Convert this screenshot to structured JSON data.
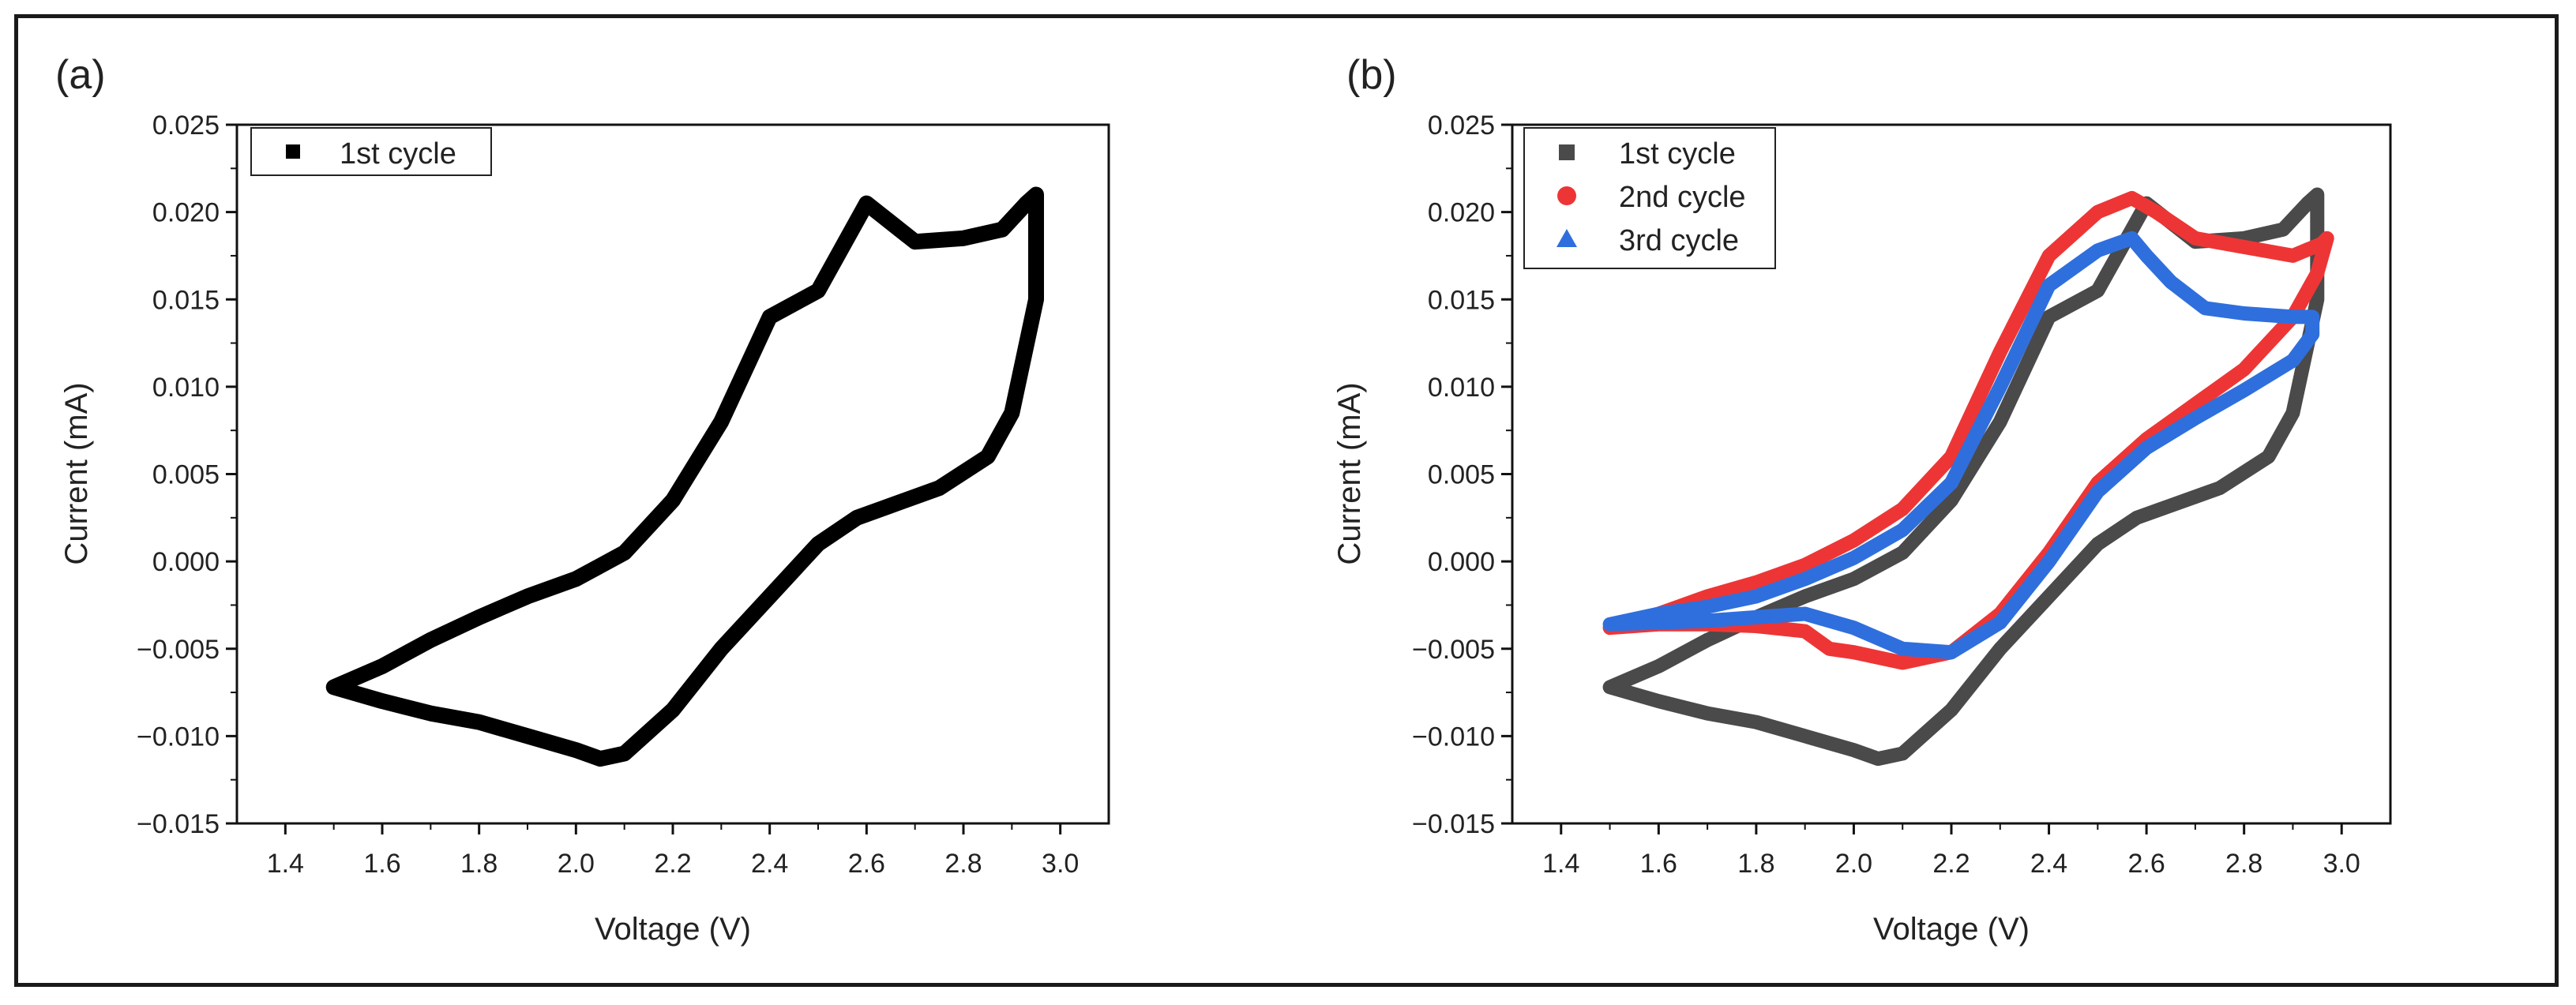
{
  "figure": {
    "panels": [
      "(a)",
      "(b)"
    ]
  },
  "colors": {
    "cycle1_a": "#000000",
    "cycle1_b": "#4a4a4a",
    "cycle2": "#ee3535",
    "cycle3": "#2f6fdd"
  },
  "chart_data": [
    {
      "type": "line",
      "panel_label": "(a)",
      "xlabel": "Voltage (V)",
      "ylabel": "Current (mA)",
      "xlim": [
        1.3,
        3.1
      ],
      "ylim": [
        -0.015,
        0.025
      ],
      "xticks": [
        "1.4",
        "1.6",
        "1.8",
        "2.0",
        "2.2",
        "2.4",
        "2.6",
        "2.8",
        "3.0"
      ],
      "yticks": [
        "0.025",
        "0.020",
        "0.015",
        "0.010",
        "0.005",
        "0.000",
        "−0.005",
        "−0.010",
        "−0.015"
      ],
      "legend_position": "top-left",
      "series": [
        {
          "name": "1st cycle",
          "marker": "square",
          "color": "#000000",
          "x": [
            1.5,
            1.6,
            1.7,
            1.8,
            1.9,
            2.0,
            2.05,
            2.1,
            2.2,
            2.3,
            2.4,
            2.5,
            2.58,
            2.65,
            2.75,
            2.85,
            2.9,
            2.95,
            2.95,
            2.93,
            2.88,
            2.8,
            2.7,
            2.6,
            2.5,
            2.4,
            2.3,
            2.2,
            2.1,
            2.0,
            1.9,
            1.8,
            1.7,
            1.6,
            1.5
          ],
          "values": [
            -0.0072,
            -0.008,
            -0.0087,
            -0.0092,
            -0.01,
            -0.0108,
            -0.0113,
            -0.011,
            -0.0085,
            -0.005,
            -0.002,
            0.001,
            0.0025,
            0.0032,
            0.0042,
            0.006,
            0.0085,
            0.015,
            0.021,
            0.0205,
            0.019,
            0.0185,
            0.0183,
            0.0205,
            0.0155,
            0.014,
            0.008,
            0.0035,
            0.0005,
            -0.001,
            -0.002,
            -0.0032,
            -0.0045,
            -0.006,
            -0.0072
          ]
        }
      ]
    },
    {
      "type": "line",
      "panel_label": "(b)",
      "xlabel": "Voltage (V)",
      "ylabel": "Current (mA)",
      "xlim": [
        1.3,
        3.1
      ],
      "ylim": [
        -0.015,
        0.025
      ],
      "xticks": [
        "1.4",
        "1.6",
        "1.8",
        "2.0",
        "2.2",
        "2.4",
        "2.6",
        "2.8",
        "3.0"
      ],
      "yticks": [
        "0.025",
        "0.020",
        "0.015",
        "0.010",
        "0.005",
        "0.000",
        "−0.005",
        "−0.010",
        "−0.015"
      ],
      "legend_position": "top-left",
      "series": [
        {
          "name": "1st cycle",
          "marker": "square",
          "color": "#4a4a4a",
          "x": [
            1.5,
            1.6,
            1.7,
            1.8,
            1.9,
            2.0,
            2.05,
            2.1,
            2.2,
            2.3,
            2.4,
            2.5,
            2.58,
            2.65,
            2.75,
            2.85,
            2.9,
            2.95,
            2.95,
            2.93,
            2.88,
            2.8,
            2.7,
            2.6,
            2.5,
            2.4,
            2.3,
            2.2,
            2.1,
            2.0,
            1.9,
            1.8,
            1.7,
            1.6,
            1.5
          ],
          "values": [
            -0.0072,
            -0.008,
            -0.0087,
            -0.0092,
            -0.01,
            -0.0108,
            -0.0113,
            -0.011,
            -0.0085,
            -0.005,
            -0.002,
            0.001,
            0.0025,
            0.0032,
            0.0042,
            0.006,
            0.0085,
            0.015,
            0.021,
            0.0205,
            0.019,
            0.0185,
            0.0183,
            0.0205,
            0.0155,
            0.014,
            0.008,
            0.0035,
            0.0005,
            -0.001,
            -0.002,
            -0.0032,
            -0.0045,
            -0.006,
            -0.0072
          ]
        },
        {
          "name": "2nd cycle",
          "marker": "circle",
          "color": "#ee3535",
          "x": [
            1.5,
            1.6,
            1.7,
            1.8,
            1.9,
            1.95,
            2.0,
            2.1,
            2.2,
            2.3,
            2.4,
            2.5,
            2.6,
            2.7,
            2.8,
            2.9,
            2.95,
            2.97,
            2.96,
            2.9,
            2.8,
            2.7,
            2.62,
            2.57,
            2.5,
            2.4,
            2.3,
            2.2,
            2.1,
            2.0,
            1.9,
            1.8,
            1.7,
            1.6,
            1.5
          ],
          "values": [
            -0.0038,
            -0.0036,
            -0.0036,
            -0.0037,
            -0.004,
            -0.005,
            -0.0052,
            -0.0058,
            -0.0052,
            -0.003,
            0.0005,
            0.0045,
            0.007,
            0.009,
            0.011,
            0.014,
            0.0165,
            0.0185,
            0.0182,
            0.0175,
            0.018,
            0.0185,
            0.02,
            0.0208,
            0.02,
            0.0175,
            0.012,
            0.006,
            0.003,
            0.0012,
            -0.0002,
            -0.0012,
            -0.002,
            -0.003,
            -0.0038
          ]
        },
        {
          "name": "3rd cycle",
          "marker": "triangle",
          "color": "#2f6fdd",
          "x": [
            1.5,
            1.6,
            1.7,
            1.8,
            1.9,
            2.0,
            2.1,
            2.2,
            2.3,
            2.4,
            2.5,
            2.6,
            2.7,
            2.8,
            2.9,
            2.94,
            2.94,
            2.9,
            2.8,
            2.72,
            2.65,
            2.6,
            2.57,
            2.5,
            2.4,
            2.3,
            2.2,
            2.1,
            2.0,
            1.9,
            1.8,
            1.7,
            1.6,
            1.5
          ],
          "values": [
            -0.0036,
            -0.0035,
            -0.0034,
            -0.0032,
            -0.003,
            -0.0038,
            -0.005,
            -0.0052,
            -0.0035,
            0.0,
            0.004,
            0.0065,
            0.0082,
            0.0098,
            0.0115,
            0.013,
            0.014,
            0.014,
            0.0142,
            0.0145,
            0.016,
            0.0175,
            0.0185,
            0.0178,
            0.0158,
            0.01,
            0.0045,
            0.0018,
            0.0002,
            -0.001,
            -0.002,
            -0.0026,
            -0.003,
            -0.0036
          ]
        }
      ]
    }
  ]
}
